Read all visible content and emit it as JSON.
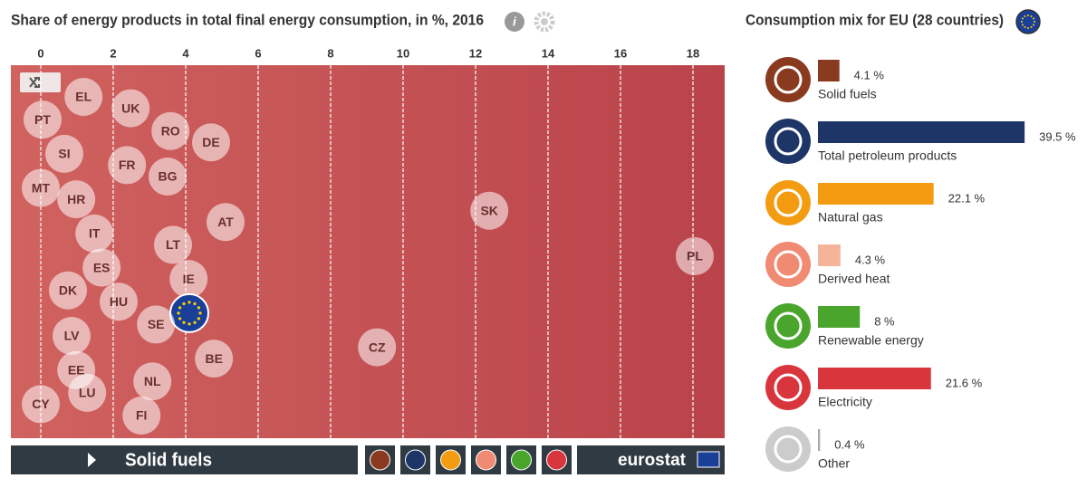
{
  "chart_data": [
    {
      "type": "scatter",
      "title": "Share of energy products in total final energy consumption, in %, 2016",
      "categories": [
        "EL",
        "UK",
        "PT",
        "RO",
        "DE",
        "SI",
        "FR",
        "BG",
        "MT",
        "HR",
        "SK",
        "AT",
        "IT",
        "LT",
        "PL",
        "ES",
        "IE",
        "DK",
        "HU",
        null,
        "SE",
        "LV",
        "CZ",
        "BE",
        "EE",
        "NL",
        "LU",
        "CY",
        "FI"
      ],
      "x": [
        1.18,
        2.48,
        0.05,
        3.58,
        4.7,
        0.65,
        2.38,
        3.5,
        0,
        0.98,
        12.38,
        5.1,
        1.48,
        3.65,
        18.05,
        1.68,
        4.08,
        0.75,
        2.15,
        4.1,
        3.18,
        0.85,
        9.28,
        4.78,
        0.98,
        3.08,
        1.28,
        0,
        2.78
      ],
      "xlim": [
        -0.825,
        18.875
      ],
      "xticks": [
        0,
        2,
        4,
        6,
        8,
        10,
        12,
        14,
        16,
        18
      ],
      "color": "#c55656",
      "grid": true
    },
    {
      "type": "bar",
      "title": "Consumption mix for EU (28 countries)",
      "categories": [
        "Solid fuels",
        "Total petroleum products",
        "Natural gas",
        "Derived heat",
        "Renewable energy",
        "Electricity",
        "Other"
      ],
      "values": [
        4.1,
        39.5,
        22.1,
        4.3,
        8,
        21.6,
        0.4
      ],
      "value_labels": [
        "4.1 %",
        "39.5 %",
        "22.1 %",
        "4.3 %",
        "8 %",
        "21.6 %",
        "0.4 %"
      ],
      "colors": [
        "#8a3a1f",
        "#1d3667",
        "#f39c12",
        "#f5b49a",
        "#4aa52d",
        "#d9353d",
        "#aaaaaa"
      ],
      "xlim": [
        0,
        40
      ]
    }
  ],
  "footer": {
    "selected": "Solid fuels",
    "brand": "eurostat"
  }
}
